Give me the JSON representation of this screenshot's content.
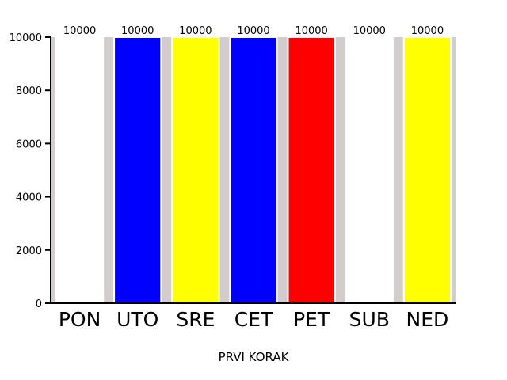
{
  "chart_data": {
    "type": "bar",
    "title": "",
    "xlabel": "PRVI KORAK",
    "ylabel": "",
    "categories": [
      "PON",
      "UTO",
      "SRE",
      "CET",
      "PET",
      "SUB",
      "NED"
    ],
    "values": [
      10000,
      10000,
      10000,
      10000,
      10000,
      10000,
      10000
    ],
    "data_labels": [
      "10000",
      "10000",
      "10000",
      "10000",
      "10000",
      "10000",
      "10000"
    ],
    "bar_colors": [
      "#ffffff",
      "#0000ff",
      "#ffff00",
      "#0000ff",
      "#ff0000",
      "#ffffff",
      "#ffff00"
    ],
    "background_band_color": "#d3cccc",
    "ylim": [
      0,
      10000
    ],
    "yticks": [
      0,
      2000,
      4000,
      6000,
      8000,
      10000
    ],
    "ytick_labels": [
      "0",
      "2000",
      "4000",
      "6000",
      "8000",
      "10000"
    ],
    "grid": false,
    "legend": "none"
  }
}
